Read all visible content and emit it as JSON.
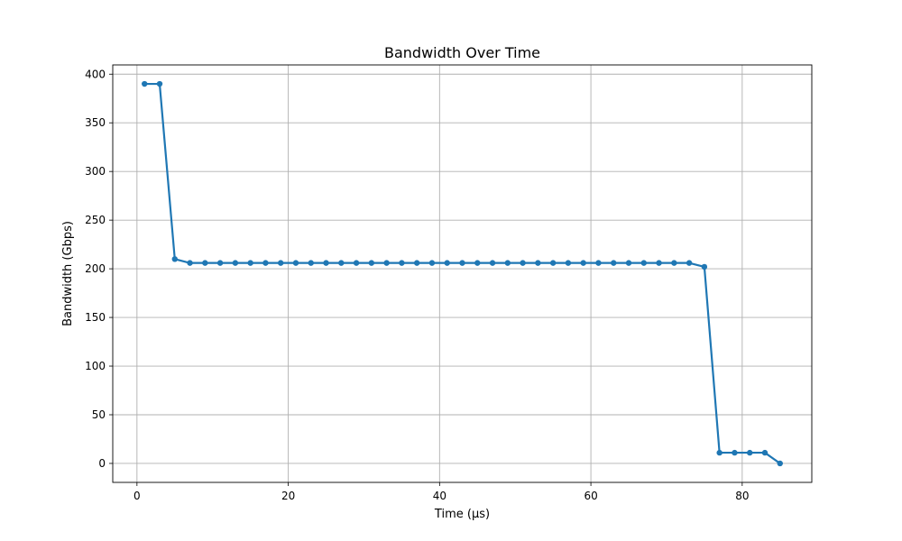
{
  "chart_data": {
    "type": "line",
    "title": "Bandwidth Over Time",
    "xlabel": "Time (μs)",
    "ylabel": "Bandwidth (Gbps)",
    "xlim": [
      -3.2,
      89.2
    ],
    "ylim": [
      -19.5,
      409.5
    ],
    "xticks": [
      0,
      20,
      40,
      60,
      80
    ],
    "yticks": [
      0,
      50,
      100,
      150,
      200,
      250,
      300,
      350,
      400
    ],
    "grid": true,
    "legend": "none",
    "color": "#1f77b4",
    "series": [
      {
        "x": [
          1,
          3,
          5,
          7,
          9,
          11,
          13,
          15,
          17,
          19,
          21,
          23,
          25,
          27,
          29,
          31,
          33,
          35,
          37,
          39,
          41,
          43,
          45,
          47,
          49,
          51,
          53,
          55,
          57,
          59,
          61,
          63,
          65,
          67,
          69,
          71,
          73,
          75,
          77,
          79,
          81,
          83,
          85
        ],
        "y": [
          390,
          390,
          210,
          206,
          206,
          206,
          206,
          206,
          206,
          206,
          206,
          206,
          206,
          206,
          206,
          206,
          206,
          206,
          206,
          206,
          206,
          206,
          206,
          206,
          206,
          206,
          206,
          206,
          206,
          206,
          206,
          206,
          206,
          206,
          206,
          206,
          206,
          202,
          11,
          11,
          11,
          11,
          0
        ]
      }
    ]
  }
}
